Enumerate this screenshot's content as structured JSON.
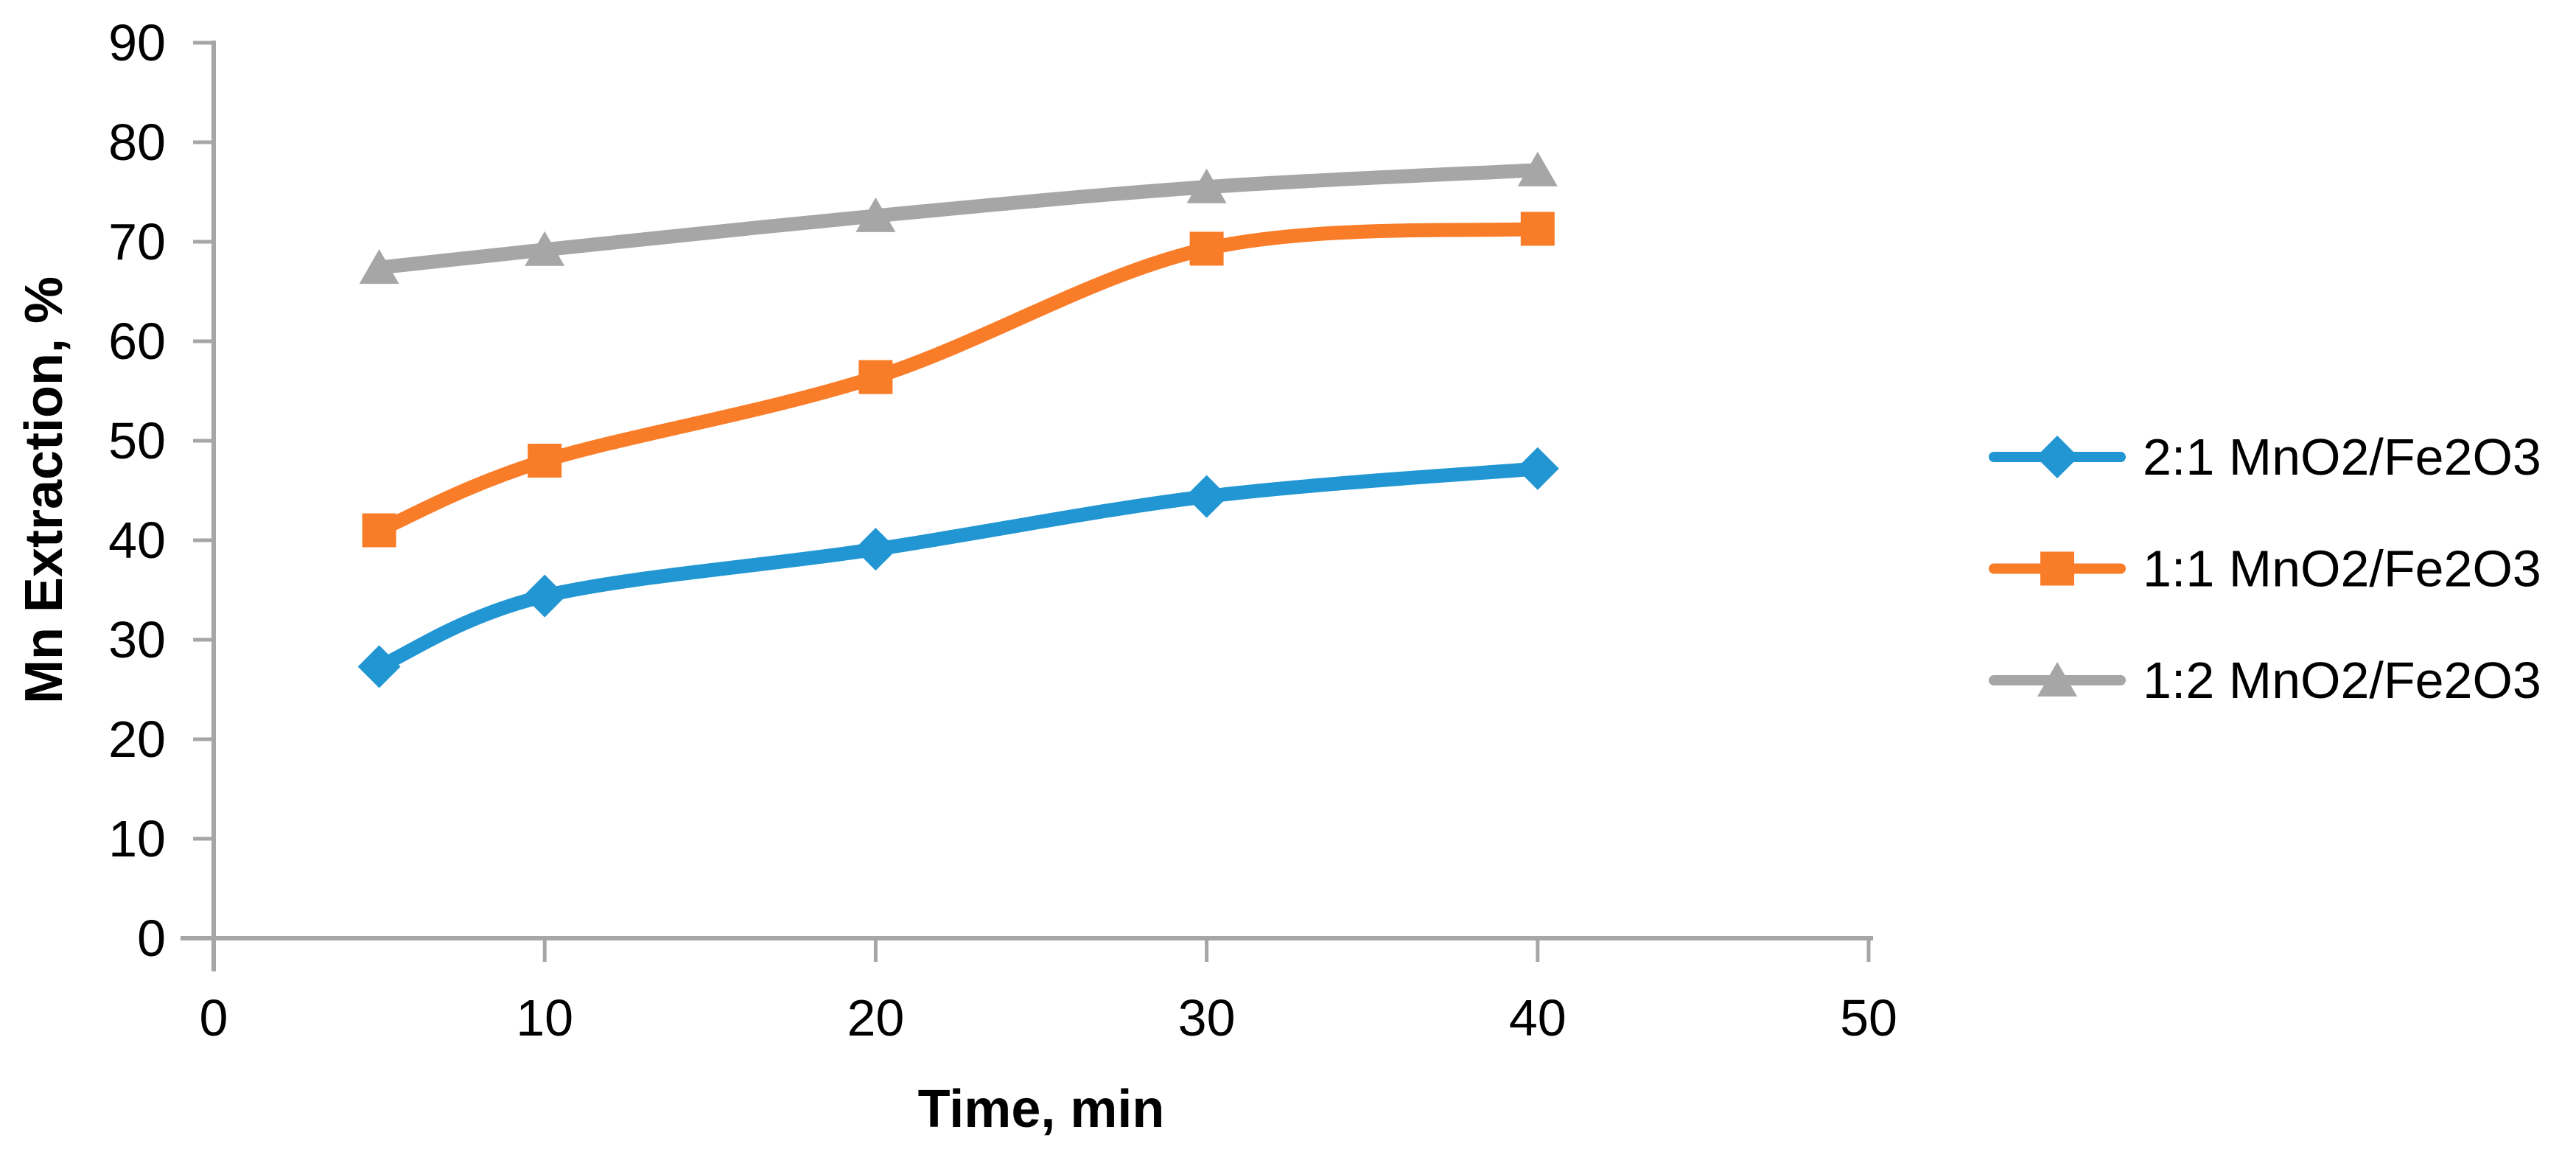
{
  "chart_data": {
    "type": "line",
    "title": "",
    "xlabel": "Time, min",
    "ylabel": "Mn Extraction, %",
    "x": [
      5,
      10,
      20,
      30,
      40
    ],
    "xlim": [
      0,
      50
    ],
    "ylim": [
      0,
      90
    ],
    "x_ticks": [
      0,
      10,
      20,
      30,
      40,
      50
    ],
    "y_ticks": [
      0,
      10,
      20,
      30,
      40,
      50,
      60,
      70,
      80,
      90
    ],
    "grid": false,
    "smooth_lines": true,
    "legend_position": "right",
    "axis_color": "#A6A6A6",
    "text_color": "#000000",
    "series": [
      {
        "name": "2:1 MnO2/Fe2O3",
        "color": "#2196D3",
        "marker": "diamond",
        "values": [
          27.3,
          34.4,
          39.1,
          44.4,
          47.2
        ]
      },
      {
        "name": "1:1 MnO2/Fe2O3",
        "color": "#F97C28",
        "marker": "square",
        "values": [
          41.0,
          48.0,
          56.4,
          69.3,
          71.3
        ]
      },
      {
        "name": "1:2 MnO2/Fe2O3",
        "color": "#A6A6A6",
        "marker": "triangle",
        "values": [
          67.4,
          69.2,
          72.6,
          75.5,
          77.2
        ]
      }
    ]
  }
}
